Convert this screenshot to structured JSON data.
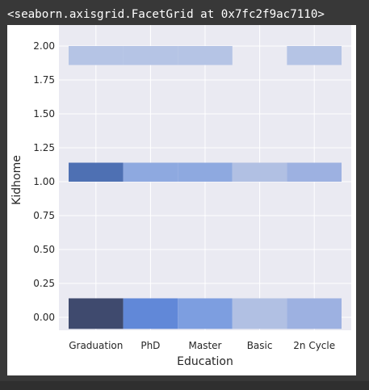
{
  "output": {
    "repr_text": "<seaborn.axisgrid.FacetGrid at 0x7fc2f9ac7110>"
  },
  "chart_data": {
    "type": "heatmap",
    "xlabel": "Education",
    "ylabel": "Kidhome",
    "categories": [
      "Graduation",
      "PhD",
      "Master",
      "Basic",
      "2n Cycle"
    ],
    "yticks": [
      "0.00",
      "0.25",
      "0.50",
      "0.75",
      "1.00",
      "1.25",
      "1.50",
      "1.75",
      "2.00"
    ],
    "ylim": [
      -0.1,
      2.1
    ],
    "grid": true,
    "bins": [
      {
        "category": "Graduation",
        "y0": -0.085,
        "y1": 0.14,
        "color": "#3f4a6e"
      },
      {
        "category": "PhD",
        "y0": -0.085,
        "y1": 0.14,
        "color": "#6188d8"
      },
      {
        "category": "Master",
        "y0": -0.085,
        "y1": 0.14,
        "color": "#7d9ee0"
      },
      {
        "category": "Basic",
        "y0": -0.085,
        "y1": 0.14,
        "color": "#b1c0e3"
      },
      {
        "category": "2n Cycle",
        "y0": -0.085,
        "y1": 0.14,
        "color": "#9db1e1"
      },
      {
        "category": "Graduation",
        "y0": 1.0,
        "y1": 1.14,
        "color": "#4e70b3"
      },
      {
        "category": "PhD",
        "y0": 1.0,
        "y1": 1.14,
        "color": "#8ea9e0"
      },
      {
        "category": "Master",
        "y0": 1.0,
        "y1": 1.14,
        "color": "#8ea9e0"
      },
      {
        "category": "Basic",
        "y0": 1.0,
        "y1": 1.14,
        "color": "#b1c0e3"
      },
      {
        "category": "2n Cycle",
        "y0": 1.0,
        "y1": 1.14,
        "color": "#9db1e1"
      },
      {
        "category": "Graduation",
        "y0": 1.86,
        "y1": 2.0,
        "color": "#b5c4e5"
      },
      {
        "category": "PhD",
        "y0": 1.86,
        "y1": 2.0,
        "color": "#b5c4e5"
      },
      {
        "category": "Master",
        "y0": 1.86,
        "y1": 2.0,
        "color": "#b5c4e5"
      },
      {
        "category": "2n Cycle",
        "y0": 1.86,
        "y1": 2.0,
        "color": "#b5c4e5"
      }
    ]
  }
}
